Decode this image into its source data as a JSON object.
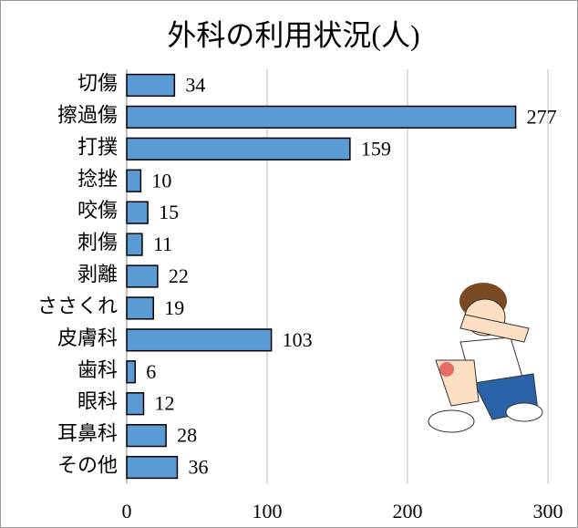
{
  "chart_data": {
    "type": "bar",
    "orientation": "horizontal",
    "title": "外科の利用状況(人)",
    "categories": [
      "切傷",
      "擦過傷",
      "打撲",
      "捻挫",
      "咬傷",
      "刺傷",
      "剥離",
      "ささくれ",
      "皮膚科",
      "歯科",
      "眼科",
      "耳鼻科",
      "その他"
    ],
    "values": [
      34,
      277,
      159,
      10,
      15,
      11,
      22,
      19,
      103,
      6,
      12,
      28,
      36
    ],
    "color": "#5b9bd5",
    "xlim": [
      0,
      300
    ],
    "xticks": [
      0,
      100,
      200,
      300
    ],
    "grid": true
  }
}
